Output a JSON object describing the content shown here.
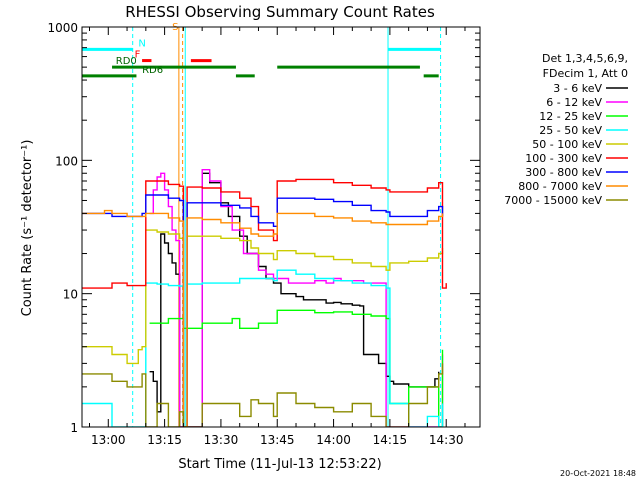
{
  "chart_data": {
    "type": "line",
    "title": "RHESSI Observing Summary Count Rates",
    "xlabel": "Start Time (11-Jul-13 12:53:22)",
    "ylabel": "Count Rate (s⁻¹ detector⁻¹)",
    "y_scale": "log",
    "ylim": [
      1,
      1000
    ],
    "xlim_minutes": [
      -7,
      99
    ],
    "x_ticks": [
      {
        "t": 0,
        "label": "13:00"
      },
      {
        "t": 15,
        "label": "13:15"
      },
      {
        "t": 30,
        "label": "13:30"
      },
      {
        "t": 45,
        "label": "13:45"
      },
      {
        "t": 60,
        "label": "14:00"
      },
      {
        "t": 75,
        "label": "14:15"
      },
      {
        "t": 90,
        "label": "14:30"
      }
    ],
    "y_ticks": [
      {
        "v": 1,
        "label": "1"
      },
      {
        "v": 10,
        "label": "10"
      },
      {
        "v": 100,
        "label": "100"
      },
      {
        "v": 1000,
        "label": "1000"
      }
    ],
    "legend_header": [
      "Det 1,3,4,5,6,9,",
      "FDecim 1, Att 0"
    ],
    "series": [
      {
        "name": "3 - 6 keV",
        "color": "#000000",
        "points": [
          [
            11,
            2.6
          ],
          [
            12,
            2.2
          ],
          [
            13,
            1.3
          ],
          [
            14,
            28
          ],
          [
            15,
            24
          ],
          [
            16,
            20
          ],
          [
            17,
            17
          ],
          [
            18,
            14
          ],
          [
            19,
            1
          ],
          [
            25,
            80
          ],
          [
            27,
            68
          ],
          [
            30,
            48
          ],
          [
            32,
            38
          ],
          [
            35,
            27
          ],
          [
            37,
            20
          ],
          [
            40,
            16
          ],
          [
            42,
            13
          ],
          [
            44,
            12
          ],
          [
            46,
            10
          ],
          [
            50,
            9.5
          ],
          [
            52,
            9
          ],
          [
            55,
            9
          ],
          [
            58,
            8.5
          ],
          [
            60,
            8.6
          ],
          [
            62,
            8.4
          ],
          [
            65,
            8.2
          ],
          [
            67,
            8.1
          ],
          [
            68,
            3.5
          ],
          [
            72,
            3
          ],
          [
            74,
            2.4
          ],
          [
            75,
            2.2
          ],
          [
            76,
            2.1
          ],
          [
            80,
            2
          ],
          [
            85,
            2
          ],
          [
            87,
            2.3
          ],
          [
            88,
            2.6
          ]
        ]
      },
      {
        "name": "6 - 12 keV",
        "color": "#ff00ff",
        "points": [
          [
            11,
            40
          ],
          [
            12,
            60
          ],
          [
            13,
            75
          ],
          [
            14,
            80
          ],
          [
            15,
            60
          ],
          [
            16,
            45
          ],
          [
            17,
            30
          ],
          [
            18,
            25
          ],
          [
            19,
            1
          ],
          [
            25,
            85
          ],
          [
            27,
            70
          ],
          [
            30,
            45
          ],
          [
            33,
            30
          ],
          [
            36,
            20
          ],
          [
            40,
            15
          ],
          [
            42,
            14
          ],
          [
            44,
            13
          ],
          [
            48,
            12
          ],
          [
            52,
            12
          ],
          [
            55,
            12.5
          ],
          [
            58,
            12
          ],
          [
            60,
            13
          ],
          [
            62,
            12.5
          ],
          [
            65,
            12.5
          ],
          [
            68,
            12
          ],
          [
            70,
            12
          ],
          [
            72,
            12
          ],
          [
            74,
            1
          ],
          [
            88,
            1
          ],
          [
            89,
            3.5
          ]
        ]
      },
      {
        "name": "12 - 25 keV",
        "color": "#00ff00",
        "points": [
          [
            11,
            6
          ],
          [
            13,
            6
          ],
          [
            16,
            6.5
          ],
          [
            19,
            6.5
          ],
          [
            20,
            5.5
          ],
          [
            23,
            5.5
          ],
          [
            25,
            6
          ],
          [
            30,
            6
          ],
          [
            33,
            6.5
          ],
          [
            35,
            5.5
          ],
          [
            38,
            5.5
          ],
          [
            40,
            6
          ],
          [
            44,
            6
          ],
          [
            45,
            7.5
          ],
          [
            50,
            7.5
          ],
          [
            55,
            7.2
          ],
          [
            60,
            7.3
          ],
          [
            65,
            7
          ],
          [
            70,
            6.8
          ],
          [
            74,
            6.5
          ],
          [
            75,
            1.5
          ],
          [
            80,
            2
          ],
          [
            85,
            2
          ],
          [
            88,
            1
          ],
          [
            89,
            3.8
          ]
        ]
      },
      {
        "name": "25 - 50 keV",
        "color": "#00ffff",
        "points": [
          [
            -7,
            1.5
          ],
          [
            -1,
            1.5
          ],
          [
            1,
            1
          ],
          [
            5,
            1
          ],
          [
            9,
            1
          ],
          [
            10,
            12
          ],
          [
            13,
            11.8
          ],
          [
            16,
            11.5
          ],
          [
            19,
            11.4
          ],
          [
            20,
            1
          ],
          [
            21,
            11.8
          ],
          [
            25,
            12
          ],
          [
            30,
            12
          ],
          [
            35,
            13
          ],
          [
            38,
            13
          ],
          [
            40,
            13
          ],
          [
            44,
            12.5
          ],
          [
            45,
            15
          ],
          [
            50,
            14
          ],
          [
            55,
            13
          ],
          [
            60,
            12.5
          ],
          [
            65,
            12
          ],
          [
            70,
            11.5
          ],
          [
            74,
            11
          ],
          [
            75,
            1.5
          ],
          [
            80,
            1
          ],
          [
            85,
            1.2
          ],
          [
            88,
            1
          ],
          [
            89,
            1.5
          ]
        ]
      },
      {
        "name": "50 - 100 keV",
        "color": "#cccc00",
        "points": [
          [
            -7,
            4
          ],
          [
            -1,
            4
          ],
          [
            1,
            3.5
          ],
          [
            5,
            3
          ],
          [
            8,
            3.8
          ],
          [
            9,
            4
          ],
          [
            10,
            30
          ],
          [
            13,
            29
          ],
          [
            16,
            28
          ],
          [
            19,
            26
          ],
          [
            20,
            1
          ],
          [
            21,
            27
          ],
          [
            25,
            27
          ],
          [
            30,
            26
          ],
          [
            35,
            25
          ],
          [
            38,
            22
          ],
          [
            40,
            20
          ],
          [
            44,
            18
          ],
          [
            45,
            21
          ],
          [
            50,
            20
          ],
          [
            55,
            19
          ],
          [
            60,
            18
          ],
          [
            65,
            17
          ],
          [
            70,
            16
          ],
          [
            74,
            15
          ],
          [
            75,
            17
          ],
          [
            80,
            17.5
          ],
          [
            85,
            18.5
          ],
          [
            88,
            20
          ],
          [
            89,
            22
          ]
        ]
      },
      {
        "name": "100 - 300 keV",
        "color": "#ff0000",
        "points": [
          [
            -7,
            11
          ],
          [
            -1,
            11
          ],
          [
            1,
            12
          ],
          [
            5,
            11.5
          ],
          [
            9,
            11.5
          ],
          [
            10,
            70
          ],
          [
            13,
            70
          ],
          [
            16,
            66
          ],
          [
            19,
            64
          ],
          [
            20,
            1
          ],
          [
            21,
            63
          ],
          [
            25,
            62
          ],
          [
            30,
            58
          ],
          [
            35,
            52
          ],
          [
            38,
            45
          ],
          [
            40,
            30
          ],
          [
            44,
            25
          ],
          [
            45,
            70
          ],
          [
            50,
            72
          ],
          [
            55,
            72
          ],
          [
            60,
            68
          ],
          [
            65,
            65
          ],
          [
            70,
            62
          ],
          [
            74,
            60
          ],
          [
            75,
            58
          ],
          [
            80,
            58
          ],
          [
            85,
            62
          ],
          [
            88,
            68
          ],
          [
            89,
            11
          ],
          [
            90,
            12
          ]
        ]
      },
      {
        "name": "300 - 800 keV",
        "color": "#0000ff",
        "points": [
          [
            -7,
            40
          ],
          [
            -1,
            40
          ],
          [
            1,
            38
          ],
          [
            5,
            38
          ],
          [
            9,
            40
          ],
          [
            10,
            55
          ],
          [
            13,
            55
          ],
          [
            16,
            52
          ],
          [
            19,
            50
          ],
          [
            20,
            1
          ],
          [
            21,
            48
          ],
          [
            25,
            48
          ],
          [
            30,
            46
          ],
          [
            35,
            44
          ],
          [
            38,
            38
          ],
          [
            40,
            34
          ],
          [
            44,
            32
          ],
          [
            45,
            52
          ],
          [
            50,
            52
          ],
          [
            55,
            51
          ],
          [
            60,
            49
          ],
          [
            65,
            46
          ],
          [
            70,
            42
          ],
          [
            74,
            41
          ],
          [
            75,
            38
          ],
          [
            80,
            38
          ],
          [
            85,
            42
          ],
          [
            88,
            45
          ],
          [
            89,
            38
          ]
        ]
      },
      {
        "name": "800 - 7000 keV",
        "color": "#ff8c00",
        "points": [
          [
            -7,
            40
          ],
          [
            -1,
            42
          ],
          [
            1,
            40
          ],
          [
            5,
            38
          ],
          [
            9,
            38
          ],
          [
            10,
            40
          ],
          [
            13,
            40
          ],
          [
            16,
            37
          ],
          [
            19,
            35
          ],
          [
            20,
            1
          ],
          [
            21,
            37
          ],
          [
            25,
            36
          ],
          [
            30,
            34
          ],
          [
            35,
            31
          ],
          [
            38,
            28
          ],
          [
            40,
            27
          ],
          [
            44,
            28
          ],
          [
            45,
            40
          ],
          [
            50,
            40
          ],
          [
            55,
            38
          ],
          [
            60,
            37
          ],
          [
            65,
            35
          ],
          [
            70,
            34
          ],
          [
            74,
            33
          ],
          [
            75,
            33
          ],
          [
            80,
            33
          ],
          [
            85,
            35
          ],
          [
            88,
            38
          ],
          [
            89,
            40
          ]
        ]
      },
      {
        "name": "7000 - 15000 keV",
        "color": "#8b8b00",
        "points": [
          [
            -7,
            2.5
          ],
          [
            -1,
            2.5
          ],
          [
            1,
            2.2
          ],
          [
            5,
            2
          ],
          [
            9,
            2.5
          ],
          [
            10,
            1
          ],
          [
            13,
            1.5
          ],
          [
            16,
            1
          ],
          [
            19,
            1.3
          ],
          [
            20,
            1
          ],
          [
            25,
            1.5
          ],
          [
            30,
            1.5
          ],
          [
            35,
            1.2
          ],
          [
            38,
            1.6
          ],
          [
            40,
            1.5
          ],
          [
            44,
            1.2
          ],
          [
            45,
            1.8
          ],
          [
            50,
            1.5
          ],
          [
            55,
            1.4
          ],
          [
            60,
            1.3
          ],
          [
            65,
            1.5
          ],
          [
            70,
            1.2
          ],
          [
            74,
            1
          ],
          [
            75,
            1
          ],
          [
            80,
            1.5
          ],
          [
            85,
            2
          ],
          [
            88,
            2.5
          ],
          [
            89,
            3
          ]
        ]
      }
    ],
    "vertical_lines": [
      {
        "t": 6.5,
        "color": "#00ffff",
        "style": "dashed"
      },
      {
        "t": 20.5,
        "color": "#00ffff",
        "style": "solid"
      },
      {
        "t": 74.5,
        "color": "#00ffff",
        "style": "solid"
      },
      {
        "t": 88.5,
        "color": "#00ffff",
        "style": "dashed"
      },
      {
        "t": 18.8,
        "color": "#ff8c00",
        "style": "solid"
      },
      {
        "t": 19.8,
        "color": "#ff8c00",
        "style": "dashed"
      }
    ],
    "flag_bars": [
      {
        "label": "N",
        "color": "#00ffff",
        "y_value": 680,
        "segments": [
          [
            -7,
            6.5
          ],
          [
            74.5,
            88.5
          ]
        ],
        "label_t": 8
      },
      {
        "label": "S",
        "color": "#ff8c00",
        "y_value": 900,
        "segments": [],
        "label_t": 17
      },
      {
        "label": "F",
        "color": "#ff0000",
        "y_value": 560,
        "segments": [
          [
            9,
            11.5
          ],
          [
            22,
            27.5
          ]
        ],
        "label_t": 7
      },
      {
        "label": "RD0",
        "color": "#008000",
        "y_value": 500,
        "segments": [
          [
            1,
            34
          ],
          [
            45,
            83
          ]
        ],
        "label_t": 2
      },
      {
        "label": "RD6",
        "color": "#008000",
        "y_value": 430,
        "segments": [
          [
            -7,
            7.5
          ],
          [
            34,
            39
          ],
          [
            84,
            88
          ]
        ],
        "label_t": 9
      }
    ],
    "footer_timestamp": "20-Oct-2021 18:48",
    "grid": false,
    "legend_position": "right"
  }
}
